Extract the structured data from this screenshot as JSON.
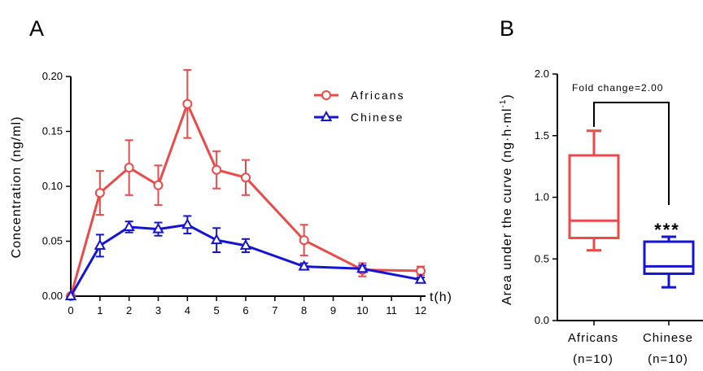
{
  "panel_labels": {
    "a": "A",
    "b": "B"
  },
  "colors": {
    "africans": "#eb4a4a",
    "chinese": "#1414d2",
    "axis": "#000000"
  },
  "chart_data": [
    {
      "type": "line",
      "xlabel": "t(h)",
      "ylabel": "Concentration (ng/ml)",
      "xlim": [
        0,
        12
      ],
      "ylim": [
        0,
        0.2
      ],
      "xticks": [
        "0",
        "1",
        "2",
        "3",
        "4",
        "5",
        "6",
        "7",
        "8",
        "9",
        "10",
        "11",
        "12"
      ],
      "yticks": [
        "0.00",
        "0.05",
        "0.10",
        "0.15",
        "0.20"
      ],
      "grid": false,
      "legend_position": "top-right",
      "series": [
        {
          "name": "Africans",
          "marker": "circle",
          "color": "#eb4a4a",
          "x": [
            0,
            1,
            2,
            3,
            4,
            5,
            6,
            8,
            10,
            12
          ],
          "y": [
            0.0,
            0.094,
            0.117,
            0.101,
            0.175,
            0.115,
            0.108,
            0.051,
            0.024,
            0.023
          ],
          "err": [
            0.0,
            0.02,
            0.025,
            0.018,
            0.031,
            0.017,
            0.016,
            0.014,
            0.006,
            0.004
          ]
        },
        {
          "name": "Chinese",
          "marker": "triangle",
          "color": "#1414d2",
          "x": [
            0,
            1,
            2,
            3,
            4,
            5,
            6,
            8,
            10,
            12
          ],
          "y": [
            0.0,
            0.046,
            0.063,
            0.061,
            0.065,
            0.051,
            0.046,
            0.027,
            0.025,
            0.015
          ],
          "err": [
            0.0,
            0.01,
            0.005,
            0.006,
            0.008,
            0.011,
            0.006,
            0.003,
            0.003,
            0.002
          ]
        }
      ]
    },
    {
      "type": "box",
      "ylabel_parts": {
        "main": "Area under the curve (ng·h·ml",
        "sup": "-1",
        "close": ")"
      },
      "ylim": [
        0,
        2
      ],
      "yticks": [
        "0.0",
        "0.5",
        "1.0",
        "1.5",
        "2.0"
      ],
      "categories": [
        {
          "name": "Africans",
          "n": "(n=10)",
          "color": "#eb4a4a"
        },
        {
          "name": "Chinese",
          "n": "(n=10)",
          "color": "#1414d2"
        }
      ],
      "boxes": [
        {
          "min": 0.57,
          "q1": 0.67,
          "median": 0.81,
          "q3": 1.34,
          "max": 1.54
        },
        {
          "min": 0.27,
          "q1": 0.38,
          "median": 0.44,
          "q3": 0.64,
          "max": 0.68
        }
      ],
      "annotation": "Fold change=2.00",
      "significance": "***"
    }
  ]
}
